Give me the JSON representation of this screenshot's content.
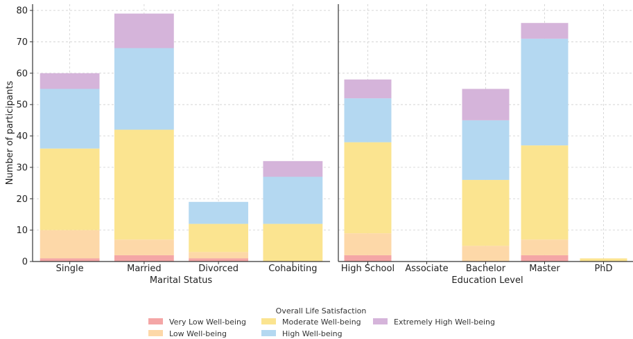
{
  "colors": {
    "Very Low Well-being": "#f4a6a6",
    "Low Well-being": "#fdd8a8",
    "Moderate Well-being": "#fbe490",
    "High Well-being": "#b4d8f1",
    "Extremely High Well-being": "#d5b4da"
  },
  "legend": {
    "title": "Overall Life Satisfaction",
    "entries": [
      "Very Low Well-being",
      "Low Well-being",
      "Moderate Well-being",
      "High Well-being",
      "Extremely High Well-being"
    ]
  },
  "chart_data": [
    {
      "type": "bar",
      "stacked": true,
      "xlabel": "Marital Status",
      "ylabel": "Number of participants",
      "ylim": [
        0,
        82
      ],
      "yticks": [
        0,
        10,
        20,
        30,
        40,
        50,
        60,
        70,
        80
      ],
      "grid": true,
      "categories": [
        "Single",
        "Married",
        "Divorced",
        "Cohabiting"
      ],
      "series": [
        {
          "name": "Very Low Well-being",
          "values": [
            1,
            2,
            1,
            0
          ]
        },
        {
          "name": "Low Well-being",
          "values": [
            9,
            5,
            2,
            0
          ]
        },
        {
          "name": "Moderate Well-being",
          "values": [
            26,
            35,
            9,
            12
          ]
        },
        {
          "name": "High Well-being",
          "values": [
            19,
            26,
            7,
            15
          ]
        },
        {
          "name": "Extremely High Well-being",
          "values": [
            5,
            11,
            0,
            5
          ]
        }
      ]
    },
    {
      "type": "bar",
      "stacked": true,
      "xlabel": "Education Level",
      "ylabel": "",
      "ylim": [
        0,
        82
      ],
      "grid": true,
      "categories": [
        "High School",
        "Associate",
        "Bachelor",
        "Master",
        "PhD"
      ],
      "series": [
        {
          "name": "Very Low Well-being",
          "values": [
            2,
            0,
            0,
            2,
            0
          ]
        },
        {
          "name": "Low Well-being",
          "values": [
            7,
            0,
            5,
            5,
            0
          ]
        },
        {
          "name": "Moderate Well-being",
          "values": [
            29,
            0,
            21,
            30,
            1
          ]
        },
        {
          "name": "High Well-being",
          "values": [
            14,
            0,
            19,
            34,
            0
          ]
        },
        {
          "name": "Extremely High Well-being",
          "values": [
            6,
            0,
            10,
            5,
            0
          ]
        }
      ]
    }
  ]
}
